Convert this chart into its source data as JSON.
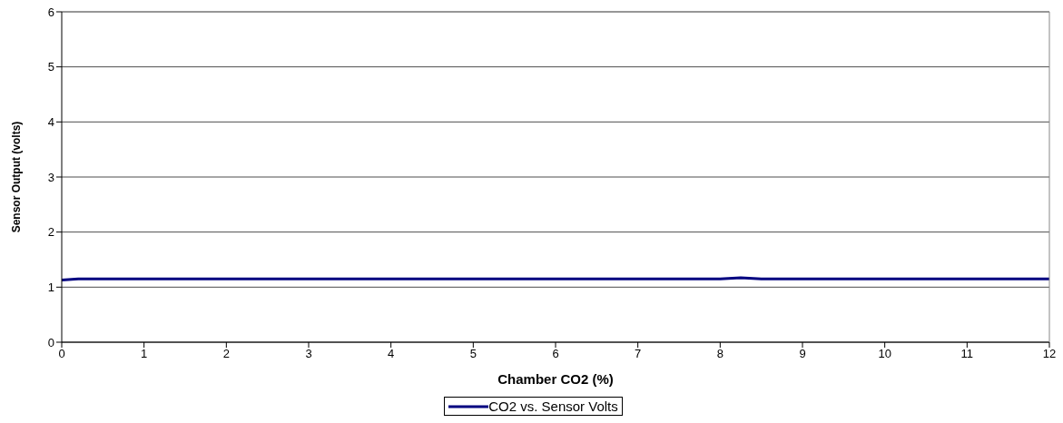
{
  "chart_data": {
    "type": "line",
    "xlabel": "Chamber CO2 (%)",
    "ylabel": "Sensor Output (volts)",
    "xlim": [
      0,
      12
    ],
    "xticks": [
      0,
      1,
      2,
      3,
      4,
      5,
      6,
      7,
      8,
      9,
      10,
      11,
      12
    ],
    "ylim": [
      0,
      6
    ],
    "yticks": [
      0,
      1,
      2,
      3,
      4,
      5,
      6
    ],
    "grid": "y",
    "legend": "bottom",
    "marker": "none",
    "line_style": "solid",
    "series": [
      {
        "name": "CO2 vs. Sensor Volts",
        "color": "#000080",
        "x": [
          0,
          0.2,
          0.5,
          1,
          1.5,
          2,
          2.5,
          3,
          3.5,
          4,
          4.5,
          5,
          5.5,
          6,
          6.5,
          7,
          7.5,
          8,
          8.25,
          8.5,
          9,
          9.5,
          10,
          10.5,
          11,
          11.5,
          12
        ],
        "values": [
          1.13,
          1.15,
          1.15,
          1.15,
          1.15,
          1.15,
          1.15,
          1.15,
          1.15,
          1.15,
          1.15,
          1.15,
          1.15,
          1.15,
          1.15,
          1.15,
          1.15,
          1.15,
          1.17,
          1.15,
          1.15,
          1.15,
          1.15,
          1.15,
          1.15,
          1.15,
          1.15
        ]
      }
    ]
  }
}
